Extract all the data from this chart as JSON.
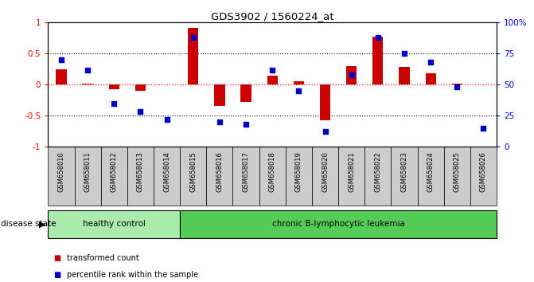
{
  "title": "GDS3902 / 1560224_at",
  "samples": [
    "GSM658010",
    "GSM658011",
    "GSM658012",
    "GSM658013",
    "GSM658014",
    "GSM658015",
    "GSM658016",
    "GSM658017",
    "GSM658018",
    "GSM658019",
    "GSM658020",
    "GSM658021",
    "GSM658022",
    "GSM658023",
    "GSM658024",
    "GSM658025",
    "GSM658026"
  ],
  "transformed_count": [
    0.25,
    0.02,
    -0.07,
    -0.1,
    0.0,
    0.92,
    -0.35,
    -0.28,
    0.15,
    0.06,
    -0.57,
    0.3,
    0.77,
    0.28,
    0.18,
    0.01,
    0.0
  ],
  "percentile_rank": [
    70,
    62,
    35,
    28,
    22,
    88,
    20,
    18,
    62,
    45,
    12,
    58,
    88,
    75,
    68,
    48,
    15
  ],
  "bar_color": "#cc0000",
  "dot_color": "#0000cc",
  "healthy_control_count": 5,
  "healthy_control_label": "healthy control",
  "leukemia_label": "chronic B-lymphocytic leukemia",
  "healthy_bg": "#aaeaaa",
  "leukemia_bg": "#55cc55",
  "xlabels_bg": "#cccccc",
  "ylim": [
    -1,
    1
  ],
  "y2lim": [
    0,
    100
  ],
  "yticks_left": [
    -1,
    -0.5,
    0,
    0.5,
    1
  ],
  "yticks_right": [
    0,
    25,
    50,
    75,
    100
  ],
  "ytick_labels_right": [
    "0",
    "25",
    "50",
    "75",
    "100%"
  ],
  "hline_vals": [
    0.5,
    0.0,
    -0.5
  ],
  "legend_bar_label": "transformed count",
  "legend_dot_label": "percentile rank within the sample",
  "disease_state_label": "disease state"
}
